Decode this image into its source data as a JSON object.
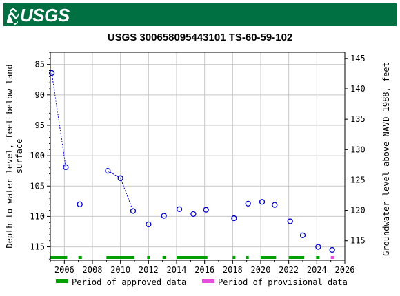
{
  "header": {
    "agency": "USGS",
    "bar_color": "#006f41"
  },
  "chart_data": {
    "type": "scatter",
    "title": "USGS 300658095443101 TS-60-59-102",
    "ylabel_left": "Depth to water level, feet below land surface",
    "ylabel_left_lines": [
      "Depth to water level, feet below land",
      "surface"
    ],
    "ylabel_right": "Groundwater level above NAVD 1988, feet",
    "xlim": [
      2005.0,
      2026.0
    ],
    "ylim_left": [
      117.2,
      83.0
    ],
    "ylim_right": [
      111.8,
      146.0
    ],
    "x_ticks": [
      2006,
      2008,
      2010,
      2012,
      2014,
      2016,
      2018,
      2020,
      2022,
      2024,
      2026
    ],
    "y_ticks_left": [
      85,
      90,
      95,
      100,
      105,
      110,
      115
    ],
    "y_ticks_right": [
      115,
      120,
      125,
      130,
      135,
      140,
      145
    ],
    "grid": true,
    "series": [
      {
        "color": "#0000cc",
        "points": [
          {
            "x": 2005.1,
            "y": 86.4
          },
          {
            "x": 2006.1,
            "y": 101.9
          },
          {
            "x": 2007.1,
            "y": 108.0
          },
          {
            "x": 2009.1,
            "y": 102.5
          },
          {
            "x": 2010.0,
            "y": 103.7
          },
          {
            "x": 2010.9,
            "y": 109.1
          },
          {
            "x": 2012.0,
            "y": 111.3
          },
          {
            "x": 2013.1,
            "y": 109.9
          },
          {
            "x": 2014.2,
            "y": 108.8
          },
          {
            "x": 2015.2,
            "y": 109.6
          },
          {
            "x": 2016.1,
            "y": 108.9
          },
          {
            "x": 2018.1,
            "y": 110.3
          },
          {
            "x": 2019.1,
            "y": 107.9
          },
          {
            "x": 2020.1,
            "y": 107.6
          },
          {
            "x": 2021.0,
            "y": 108.1
          },
          {
            "x": 2022.1,
            "y": 110.8
          },
          {
            "x": 2023.0,
            "y": 113.1
          },
          {
            "x": 2024.1,
            "y": 115.0
          },
          {
            "x": 2025.1,
            "y": 115.5
          }
        ],
        "connected_segments": [
          [
            0,
            1
          ],
          [
            3,
            4,
            5
          ]
        ]
      }
    ],
    "approved_periods": [
      [
        2005.0,
        2006.2
      ],
      [
        2007.0,
        2007.25
      ],
      [
        2009.0,
        2011.0
      ],
      [
        2011.9,
        2012.1
      ],
      [
        2013.0,
        2013.25
      ],
      [
        2014.0,
        2016.2
      ],
      [
        2018.0,
        2018.2
      ],
      [
        2018.95,
        2019.15
      ],
      [
        2020.0,
        2021.1
      ],
      [
        2022.0,
        2023.1
      ],
      [
        2023.95,
        2024.2
      ]
    ],
    "provisional_periods": [
      [
        2025.0,
        2025.25
      ]
    ],
    "approved_color": "#00a000",
    "provisional_color": "#e34fdc",
    "legend": {
      "placement": "bottom",
      "approved_label": "Period of approved data",
      "provisional_label": "Period of provisional data"
    }
  }
}
